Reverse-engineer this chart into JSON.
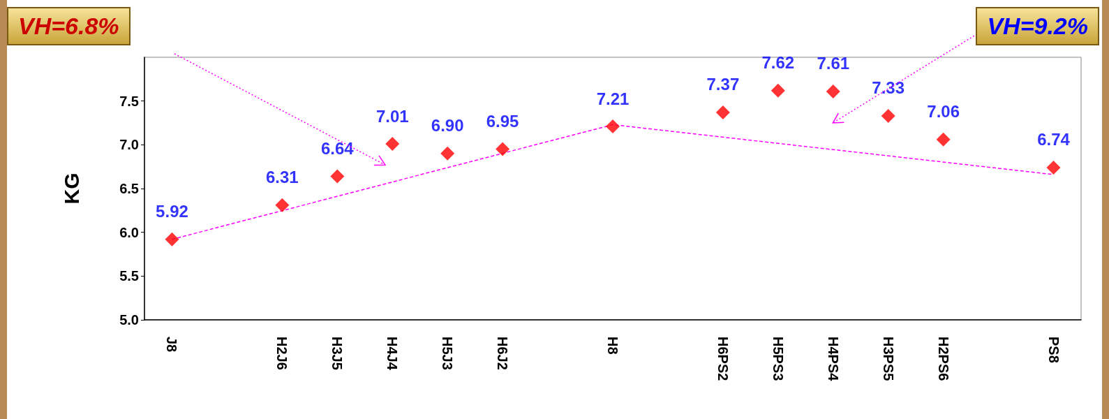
{
  "chart_data": {
    "type": "scatter",
    "ylabel": "KG",
    "categories": [
      "J8",
      null,
      "H2J6",
      "H3J5",
      "H4J4",
      "H5J3",
      "H6J2",
      null,
      "H8",
      null,
      "H6PS2",
      "H5PS3",
      "H4PS4",
      "H3PS5",
      "H2PS6",
      null,
      "PS8"
    ],
    "series": [
      {
        "color": "#ff0000",
        "marker": "diamond",
        "values": [
          5.92,
          null,
          6.31,
          6.64,
          7.01,
          6.9,
          6.95,
          null,
          7.21,
          null,
          7.37,
          7.62,
          7.61,
          7.33,
          7.06,
          null,
          6.74
        ],
        "value_labels": [
          "5.92",
          null,
          "6.31",
          "6.64",
          "7.01",
          "6.90",
          "6.95",
          null,
          "7.21",
          null,
          "7.37",
          "7.62",
          "7.61",
          "7.33",
          "7.06",
          null,
          "6.74"
        ]
      },
      {
        "type": "line",
        "color": "#ff00ff",
        "line_style": "dashed",
        "marker": "none",
        "values": [
          5.92,
          null,
          null,
          null,
          null,
          null,
          null,
          null,
          7.23,
          null,
          null,
          null,
          null,
          null,
          null,
          null,
          6.66
        ]
      }
    ],
    "ylim": [
      5,
      8
    ],
    "yticks": [
      {
        "value": 5,
        "label": "5.0"
      },
      {
        "value": 5.5,
        "label": "5.5"
      },
      {
        "value": 6,
        "label": "6.0"
      },
      {
        "value": 6.5,
        "label": "6.5"
      },
      {
        "value": 7,
        "label": "7.0"
      },
      {
        "value": 7.5,
        "label": "7.5"
      }
    ],
    "grid": false,
    "annotations": [
      "VH=6.8%",
      "VH=9.2%"
    ]
  }
}
